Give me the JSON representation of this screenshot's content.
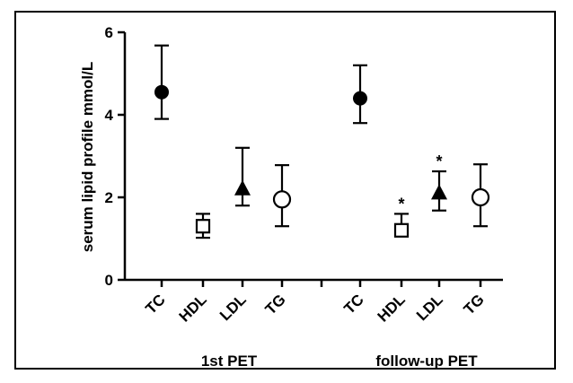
{
  "chart_data": {
    "type": "scatter",
    "title": "",
    "xlabel": "",
    "ylabel": "serum lipid profile mmol/L",
    "ylim": [
      0,
      6
    ],
    "yticks": [
      "0",
      "2",
      "4",
      "6"
    ],
    "grid": false,
    "legend": "none",
    "groups": [
      {
        "name": "1st PET",
        "points": [
          {
            "label": "TC",
            "mean": 4.55,
            "upper": 5.68,
            "lower": 3.9,
            "marker": "filled-circle"
          },
          {
            "label": "HDL",
            "mean": 1.3,
            "upper": 1.6,
            "lower": 1.02,
            "marker": "open-square"
          },
          {
            "label": "LDL",
            "mean": 2.2,
            "upper": 3.2,
            "lower": 1.8,
            "marker": "filled-triangle"
          },
          {
            "label": "TG",
            "mean": 1.95,
            "upper": 2.78,
            "lower": 1.3,
            "marker": "open-circle"
          }
        ]
      },
      {
        "name": "follow-up PET",
        "points": [
          {
            "label": "TC",
            "mean": 4.4,
            "upper": 5.2,
            "lower": 3.8,
            "marker": "filled-circle"
          },
          {
            "label": "HDL",
            "mean": 1.2,
            "upper": 1.6,
            "lower": 1.2,
            "marker": "open-square",
            "annotation": "*"
          },
          {
            "label": "LDL",
            "mean": 2.1,
            "upper": 2.63,
            "lower": 1.68,
            "marker": "filled-triangle",
            "annotation": "*"
          },
          {
            "label": "TG",
            "mean": 2.0,
            "upper": 2.8,
            "lower": 1.3,
            "marker": "open-circle"
          }
        ]
      }
    ]
  }
}
